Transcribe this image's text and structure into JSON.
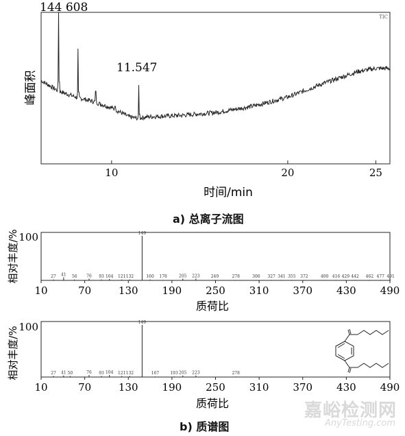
{
  "chart_data": [
    {
      "type": "line",
      "title": "",
      "ylabel": "峰面积",
      "xlabel": "时间/min",
      "xlim": [
        6,
        25.8
      ],
      "xticks": [
        10,
        20,
        25
      ],
      "ylim": [
        0,
        1
      ],
      "corner_label": "TIC",
      "peak_labels": [
        "144 608",
        "11.547"
      ],
      "baseline": {
        "x": [
          6,
          7,
          8,
          9,
          10,
          11,
          11.5,
          12,
          14,
          16,
          18,
          20,
          22,
          23,
          24,
          25,
          25.8
        ],
        "y": [
          0.55,
          0.48,
          0.44,
          0.41,
          0.37,
          0.31,
          0.3,
          0.31,
          0.32,
          0.34,
          0.38,
          0.44,
          0.53,
          0.57,
          0.61,
          0.63,
          0.63
        ]
      },
      "peaks": [
        {
          "x": 7.0,
          "y": 1.0
        },
        {
          "x": 8.1,
          "y": 0.76
        },
        {
          "x": 9.1,
          "y": 0.48
        },
        {
          "x": 10.2,
          "y": 0.38
        },
        {
          "x": 11.55,
          "y": 0.52
        }
      ]
    },
    {
      "type": "bar",
      "title": "",
      "xlabel": "质荷比",
      "ylabel": "相对丰度/%",
      "xlim": [
        10,
        490
      ],
      "xticks": [
        10,
        70,
        130,
        190,
        250,
        310,
        370,
        430,
        490
      ],
      "ymax_label": "100",
      "bars": [
        {
          "x": 27,
          "v": 2,
          "label": "27"
        },
        {
          "x": 41,
          "v": 7,
          "label": "41"
        },
        {
          "x": 56,
          "v": 2,
          "label": "56"
        },
        {
          "x": 76,
          "v": 4,
          "label": "76"
        },
        {
          "x": 93,
          "v": 2,
          "label": "93"
        },
        {
          "x": 104,
          "v": 3,
          "label": "104"
        },
        {
          "x": 121,
          "v": 2,
          "label": "121"
        },
        {
          "x": 132,
          "v": 2,
          "label": "132"
        },
        {
          "x": 149,
          "v": 100,
          "label": "149"
        },
        {
          "x": 160,
          "v": 2,
          "label": "160"
        },
        {
          "x": 178,
          "v": 1,
          "label": "178"
        },
        {
          "x": 205,
          "v": 4,
          "label": "205"
        },
        {
          "x": 223,
          "v": 4,
          "label": "223"
        },
        {
          "x": 249,
          "v": 1,
          "label": "249"
        },
        {
          "x": 278,
          "v": 1,
          "label": "278"
        },
        {
          "x": 306,
          "v": 1,
          "label": "306"
        },
        {
          "x": 327,
          "v": 1,
          "label": "327"
        },
        {
          "x": 341,
          "v": 1,
          "label": "341"
        },
        {
          "x": 355,
          "v": 1,
          "label": "355"
        },
        {
          "x": 372,
          "v": 1,
          "label": "372"
        },
        {
          "x": 400,
          "v": 1,
          "label": "400"
        },
        {
          "x": 416,
          "v": 1,
          "label": "416"
        },
        {
          "x": 429,
          "v": 1,
          "label": "429"
        },
        {
          "x": 442,
          "v": 1,
          "label": "442"
        },
        {
          "x": 462,
          "v": 1,
          "label": "462"
        },
        {
          "x": 477,
          "v": 1,
          "label": "477"
        },
        {
          "x": 491,
          "v": 1,
          "label": "491"
        }
      ]
    },
    {
      "type": "bar",
      "title": "",
      "xlabel": "质荷比",
      "ylabel": "相对丰度/%",
      "xlim": [
        10,
        490
      ],
      "xticks": [
        10,
        70,
        130,
        190,
        250,
        310,
        370,
        430,
        490
      ],
      "ymax_label": "100",
      "bars": [
        {
          "x": 27,
          "v": 2,
          "label": "27"
        },
        {
          "x": 41,
          "v": 3,
          "label": "41"
        },
        {
          "x": 50,
          "v": 2,
          "label": "50"
        },
        {
          "x": 76,
          "v": 4,
          "label": "76"
        },
        {
          "x": 93,
          "v": 2,
          "label": "93"
        },
        {
          "x": 104,
          "v": 4,
          "label": "104"
        },
        {
          "x": 121,
          "v": 2,
          "label": "121"
        },
        {
          "x": 132,
          "v": 2,
          "label": "132"
        },
        {
          "x": 149,
          "v": 100,
          "label": "149"
        },
        {
          "x": 167,
          "v": 1,
          "label": "167"
        },
        {
          "x": 193,
          "v": 1,
          "label": "193"
        },
        {
          "x": 205,
          "v": 3,
          "label": "205"
        },
        {
          "x": 223,
          "v": 3,
          "label": "223"
        },
        {
          "x": 278,
          "v": 1,
          "label": "278"
        }
      ]
    }
  ],
  "captions": {
    "a": "a) 总离子流图",
    "b": "b) 质谱图"
  },
  "watermark": {
    "cn": "嘉峪检测网",
    "en": "AnyTesting.com"
  }
}
